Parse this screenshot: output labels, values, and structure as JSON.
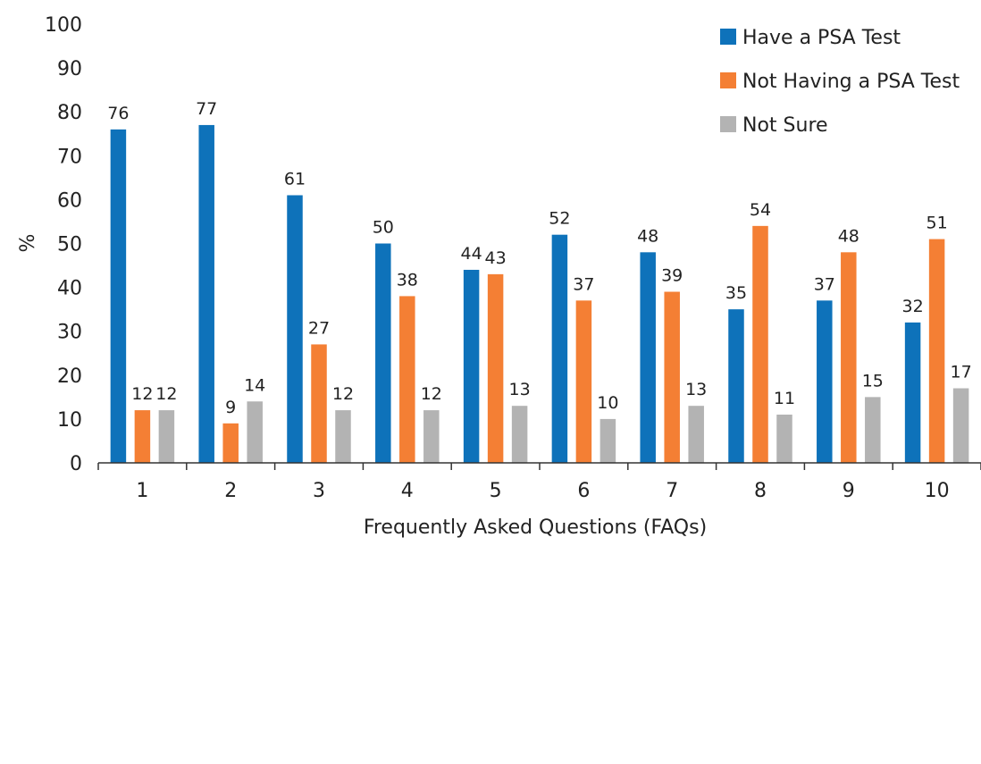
{
  "chart_data": {
    "type": "bar",
    "title": "",
    "xlabel": "Frequently Asked Questions (FAQs)",
    "ylabel": "%",
    "ylim": [
      0,
      100
    ],
    "yticks": [
      0,
      10,
      20,
      30,
      40,
      50,
      60,
      70,
      80,
      90,
      100
    ],
    "grid": false,
    "legend_position": "top-right",
    "categories": [
      "1",
      "2",
      "3",
      "4",
      "5",
      "6",
      "7",
      "8",
      "9",
      "10"
    ],
    "series": [
      {
        "name": "Have a PSA Test",
        "color": "#0E72BA",
        "values": [
          76,
          77,
          61,
          50,
          44,
          52,
          48,
          35,
          37,
          32
        ]
      },
      {
        "name": "Not Having a PSA Test",
        "color": "#F47F34",
        "values": [
          12,
          9,
          27,
          38,
          43,
          37,
          39,
          54,
          48,
          51
        ]
      },
      {
        "name": "Not Sure",
        "color": "#B3B3B3",
        "values": [
          12,
          14,
          12,
          12,
          13,
          10,
          13,
          11,
          15,
          17
        ]
      }
    ]
  }
}
